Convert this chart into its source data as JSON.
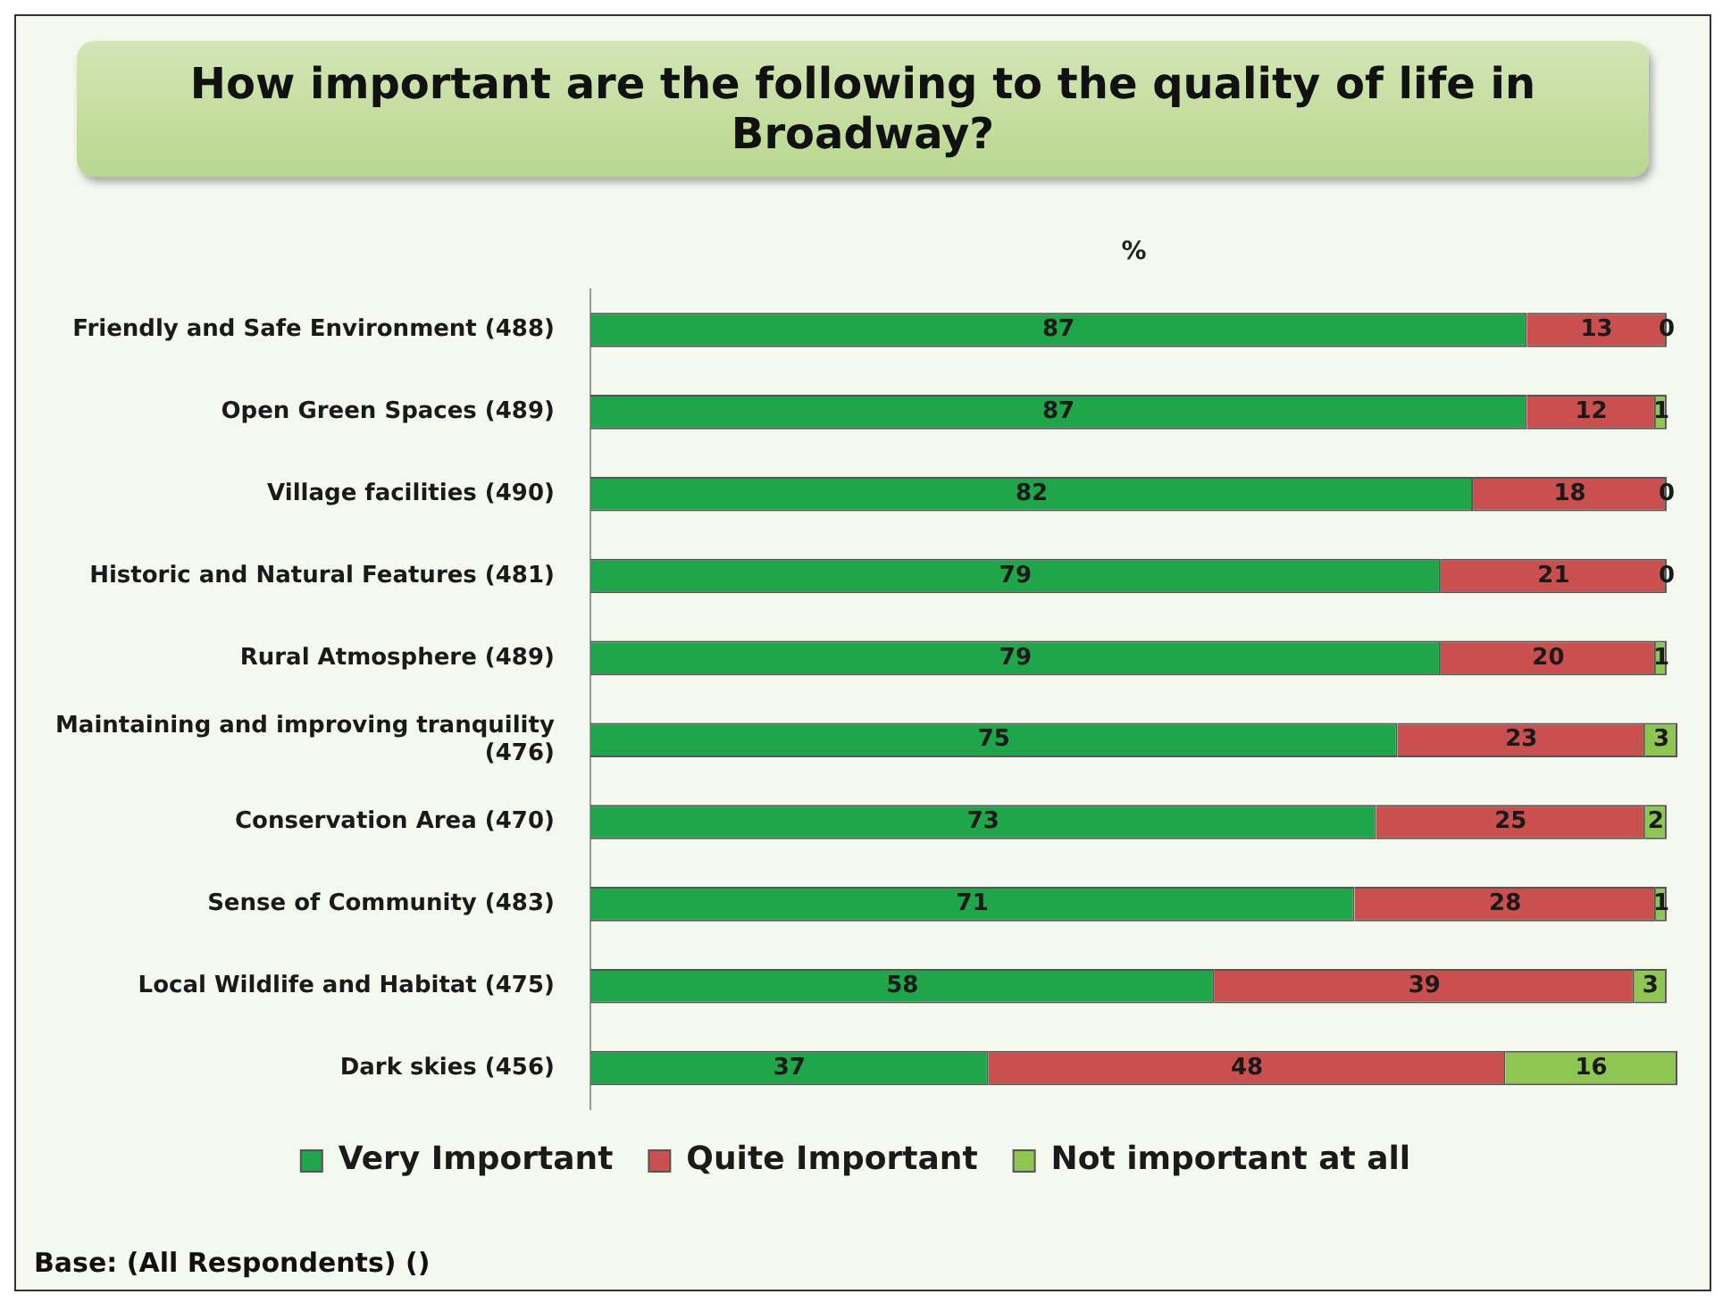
{
  "chart_data": {
    "type": "bar",
    "orientation": "horizontal",
    "stacked": true,
    "title": "How important are the following to the quality of life in Broadway?",
    "xlabel": "%",
    "categories": [
      "Friendly and Safe Environment (488)",
      "Open Green Spaces (489)",
      "Village facilities (490)",
      "Historic and Natural Features (481)",
      "Rural Atmosphere (489)",
      "Maintaining and improving tranquility (476)",
      "Conservation Area (470)",
      "Sense of Community (483)",
      "Local Wildlife and Habitat (475)",
      "Dark skies (456)"
    ],
    "series": [
      {
        "name": "Very Important",
        "color": "#1fa64a",
        "values": [
          87,
          87,
          82,
          79,
          79,
          75,
          73,
          71,
          58,
          37
        ]
      },
      {
        "name": "Quite Important",
        "color": "#c9504f",
        "values": [
          13,
          12,
          18,
          21,
          20,
          23,
          25,
          28,
          39,
          48
        ]
      },
      {
        "name": "Not important at all",
        "color": "#8fc552",
        "values": [
          0,
          1,
          0,
          0,
          1,
          3,
          2,
          1,
          3,
          16
        ]
      }
    ],
    "data_labels": true,
    "legend": "bottom",
    "grid": false,
    "annotations": [
      "Base: (All Respondents) ()"
    ]
  }
}
